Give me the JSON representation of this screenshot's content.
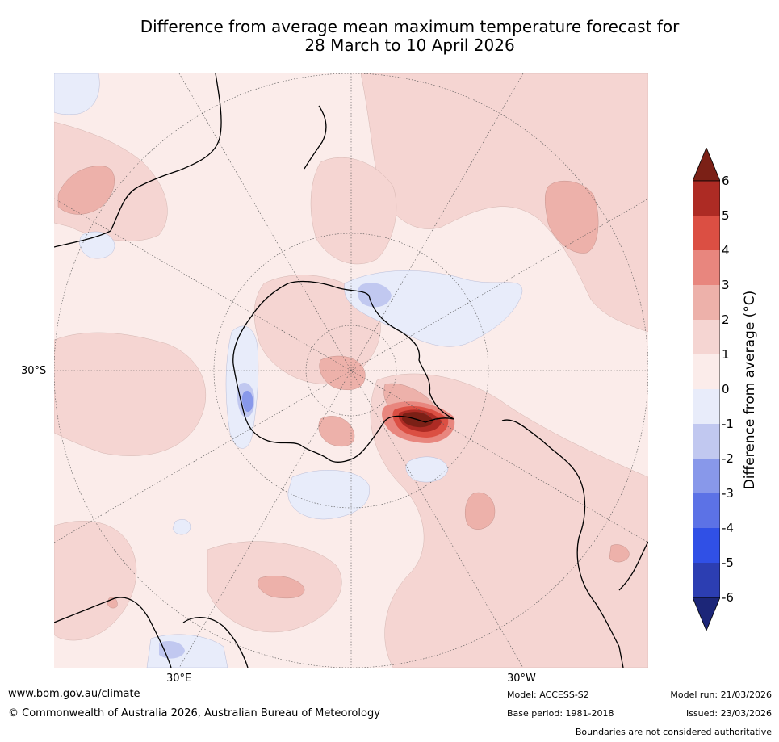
{
  "title": {
    "line1": "Difference from average mean maximum temperature forecast for",
    "line2": "28 March to 10 April 2026"
  },
  "map": {
    "projection": "south polar stereographic",
    "lat_label": "30°S",
    "lon_labels": {
      "east": "30°E",
      "west": "30°W"
    }
  },
  "colorbar": {
    "title": "Difference from average (°C)",
    "ticks": [
      "6",
      "5",
      "4",
      "3",
      "2",
      "1",
      "0",
      "-1",
      "-2",
      "-3",
      "-4",
      "-5",
      "-6"
    ],
    "colors": {
      "over6": "#7b2016",
      "5to6": "#ad2b24",
      "4to5": "#db4f43",
      "3to4": "#e8867e",
      "2to3": "#edb1aa",
      "1to2": "#f5d5d2",
      "0to1": "#fbecea",
      "m1to0": "#e8ecfa",
      "m2tom1": "#c1c8f0",
      "m3tom2": "#8898ea",
      "m4tom3": "#5c72e6",
      "m5tom4": "#3050e6",
      "m6tom5": "#2c3eb2",
      "undermin6": "#1c2678"
    }
  },
  "footer": {
    "website": "www.bom.gov.au/climate",
    "copyright": "© Commonwealth of Australia 2026, Australian Bureau of Meteorology",
    "model": "Model: ACCESS-S2",
    "base_period": "Base period: 1981-2018",
    "model_run": "Model run: 21/03/2026",
    "issued": "Issued: 23/03/2026",
    "disclaimer": "Boundaries are not considered authoritative"
  }
}
